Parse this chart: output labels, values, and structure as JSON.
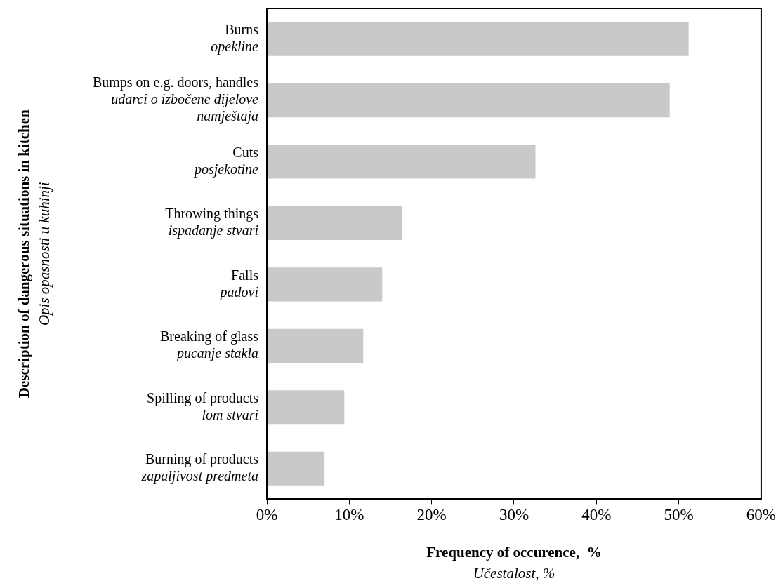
{
  "chart_data": {
    "type": "bar",
    "orientation": "horizontal",
    "xlabel": "Frequency of occurence,  %\nUčestalost, %",
    "ylabel": "Description of dangerous situations in kitchen\nOpis opasnosti u kuhinji",
    "categories": [
      "Burns\nopekline",
      "Bumps on e.g. doors, handles\nudarci o izbočene dijelove\nnamještaja",
      "Cuts\nposjekotine",
      "Throwing things\nispadanje stvari",
      "Falls\npadovi",
      "Breaking of glass\npucanje stakla",
      "Spilling of products\nlom stvari",
      "Burning of products\nzapaljivost predmeta"
    ],
    "values": [
      51.2,
      48.9,
      32.6,
      16.4,
      14.0,
      11.7,
      9.4,
      7.0
    ],
    "color": "#c8c9cb",
    "xlim": [
      0,
      60
    ],
    "xticks": [
      {
        "value": 0,
        "label": "0%"
      },
      {
        "value": 10,
        "label": "10%"
      },
      {
        "value": 20,
        "label": "20%"
      },
      {
        "value": 30,
        "label": "30%"
      },
      {
        "value": 40,
        "label": "40%"
      },
      {
        "value": 50,
        "label": "50%"
      },
      {
        "value": 60,
        "label": "60%"
      }
    ]
  }
}
